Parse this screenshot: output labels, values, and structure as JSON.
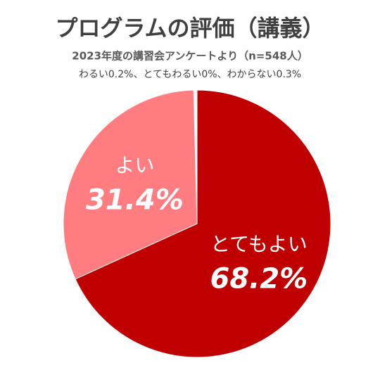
{
  "chart_data": {
    "type": "pie",
    "title": "プログラムの評価（講義）",
    "subtitle": "2023年度の講習会アンケートより（n=548人）",
    "annotation": "わるい0.2%、とてもわるい0%、わからない0.3%",
    "categories": [
      "とてもよい",
      "よい"
    ],
    "values": [
      68.2,
      31.4
    ],
    "value_labels": [
      "68.2%",
      "31.4%"
    ],
    "colors": [
      "#c00000",
      "#ff7c80"
    ]
  }
}
